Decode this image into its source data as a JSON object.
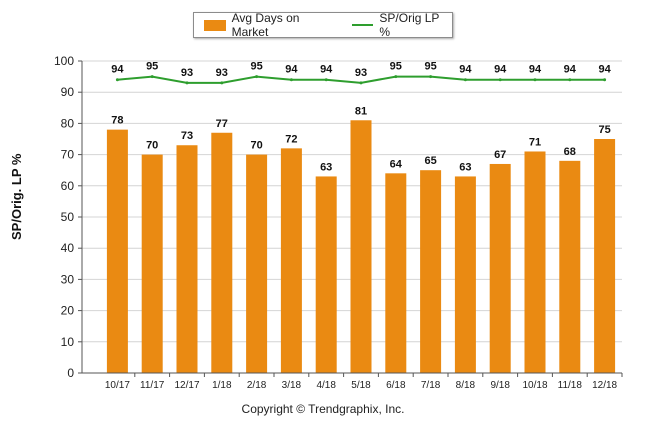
{
  "chart_data": {
    "type": "bar+line",
    "categories": [
      "10/17",
      "11/17",
      "12/17",
      "1/18",
      "2/18",
      "3/18",
      "4/18",
      "5/18",
      "6/18",
      "7/18",
      "8/18",
      "9/18",
      "10/18",
      "11/18",
      "12/18"
    ],
    "series": [
      {
        "name": "Avg Days on Market",
        "type": "bar",
        "color": "#ea8a12",
        "values": [
          78,
          70,
          73,
          77,
          70,
          72,
          63,
          81,
          64,
          65,
          63,
          67,
          71,
          68,
          75
        ]
      },
      {
        "name": "SP/Orig LP %",
        "type": "line",
        "color": "#2e9e2e",
        "values": [
          94,
          95,
          93,
          93,
          95,
          94,
          94,
          93,
          95,
          95,
          94,
          94,
          94,
          94,
          94
        ]
      }
    ],
    "ylabel": "SP/Orig. LP %",
    "ylim": [
      0,
      100
    ],
    "yticks": [
      0,
      10,
      20,
      30,
      40,
      50,
      60,
      70,
      80,
      90,
      100
    ],
    "grid": true,
    "legend_position": "top-center"
  },
  "footer": {
    "copyright": "Copyright © Trendgraphix, Inc."
  }
}
